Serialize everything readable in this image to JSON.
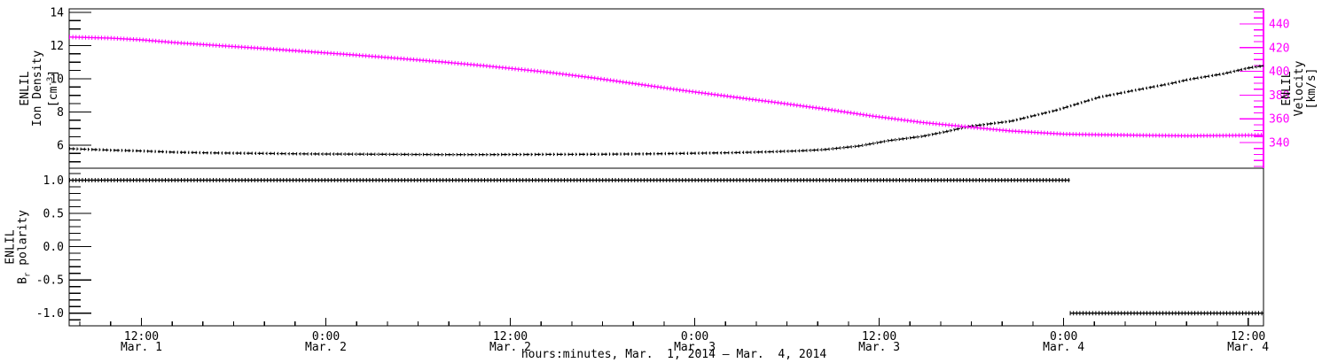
{
  "labels": {
    "density_axis": {
      "line1": "ENLIL",
      "line2": "Ion Density",
      "unit_pre": "[cm",
      "unit_sup": "-3",
      "unit_post": "]"
    },
    "velocity_axis": {
      "line1": "ENLIL",
      "line2": "Velocity",
      "line3": "[km/s]"
    },
    "polarity_axis": {
      "line1": "ENLIL",
      "pre": "B",
      "sub": "r",
      "post": " polarity"
    },
    "x_axis_title": "hours:minutes, Mar.  1, 2014 — Mar.  4, 2014"
  },
  "colors": {
    "background": "#FFFFFF",
    "frame": "#000000",
    "density_series": "#000000",
    "velocity_series": "#FF00FF",
    "polarity_series": "#000000",
    "velocity_axis": "#FF00FF"
  },
  "chart_data": [
    {
      "type": "line",
      "panel": "top",
      "x_axis": {
        "unit": "hours from Mar. 1, 2014 00:00",
        "xlim": [
          7.3,
          85.0
        ],
        "major_ticks": [
          12,
          24,
          36,
          48,
          60,
          72,
          84
        ],
        "major_tick_labels": [
          [
            "12:00",
            "Mar. 1"
          ],
          [
            "0:00",
            "Mar. 2"
          ],
          [
            "12:00",
            "Mar. 2"
          ],
          [
            "0:00",
            "Mar. 3"
          ],
          [
            "12:00",
            "Mar. 3"
          ],
          [
            "0:00",
            "Mar. 4"
          ],
          [
            "12:00",
            "Mar. 4"
          ]
        ],
        "minor_step": 2,
        "labels_shown": false
      },
      "left_axis": {
        "title": "ENLIL Ion Density [cm^-3]",
        "color": "#000000",
        "ylim": [
          4.61,
          14.21
        ],
        "major_ticks": [
          6,
          8,
          10,
          12,
          14
        ],
        "tick_labels": [
          "6",
          "8",
          "10",
          "12",
          "14"
        ],
        "minor_step": 0.5,
        "minor_range": [
          5.0,
          14.0
        ]
      },
      "right_axis": {
        "title": "ENLIL Velocity [km/s]",
        "color": "#FF00FF",
        "ylim": [
          318.4,
          452.7
        ],
        "major_ticks": [
          340,
          360,
          380,
          400,
          420,
          440
        ],
        "tick_labels": [
          "340",
          "360",
          "380",
          "400",
          "420",
          "440"
        ],
        "minor_step": 5,
        "minor_range": [
          320,
          450
        ]
      },
      "series": [
        {
          "name": "ion_density",
          "axis": "left",
          "color": "#000000",
          "style": "dashdot",
          "x": [
            7.3,
            10,
            12,
            14.3,
            17,
            20,
            23,
            25.8,
            28.7,
            31.6,
            34.5,
            38.5,
            41.4,
            44.3,
            47.2,
            50.7,
            53,
            54.9,
            56.4,
            58.7,
            60.6,
            62.8,
            64.3,
            65.8,
            68.6,
            71.5,
            74.3,
            76.6,
            78.9,
            80.1,
            82.4,
            84,
            85
          ],
          "y": [
            5.79,
            5.7,
            5.65,
            5.57,
            5.53,
            5.5,
            5.47,
            5.46,
            5.44,
            5.43,
            5.43,
            5.44,
            5.45,
            5.47,
            5.5,
            5.55,
            5.6,
            5.66,
            5.73,
            5.95,
            6.27,
            6.53,
            6.8,
            7.12,
            7.45,
            8.1,
            8.88,
            9.3,
            9.7,
            9.95,
            10.3,
            10.65,
            10.78
          ]
        },
        {
          "name": "velocity",
          "axis": "right",
          "color": "#FF00FF",
          "style": "plus",
          "x": [
            7.3,
            10,
            12,
            14.3,
            17,
            20.1,
            23,
            25.8,
            28.7,
            31.6,
            34.5,
            38.5,
            41.4,
            44.3,
            47.2,
            50.7,
            53.5,
            56.4,
            59.5,
            62.8,
            65.8,
            68.6,
            72,
            74.3,
            76.6,
            80.1,
            82.4,
            85
          ],
          "y": [
            429,
            428,
            426.6,
            424.1,
            421.8,
            419.1,
            416.5,
            413.9,
            411,
            407.9,
            404.5,
            399.2,
            394.5,
            389.3,
            384,
            378.1,
            373.5,
            368.4,
            362.5,
            357,
            353.2,
            349.7,
            347.2,
            346.6,
            346.2,
            345.7,
            345.9,
            346.3
          ]
        }
      ]
    },
    {
      "type": "line",
      "panel": "bottom",
      "x_axis": {
        "unit": "hours from Mar. 1, 2014 00:00",
        "xlim": [
          7.3,
          85.0
        ],
        "major_ticks": [
          12,
          24,
          36,
          48,
          60,
          72,
          84
        ],
        "major_tick_labels": [
          [
            "12:00",
            "Mar. 1"
          ],
          [
            "0:00",
            "Mar. 2"
          ],
          [
            "12:00",
            "Mar. 2"
          ],
          [
            "0:00",
            "Mar. 3"
          ],
          [
            "12:00",
            "Mar. 3"
          ],
          [
            "0:00",
            "Mar. 4"
          ],
          [
            "12:00",
            "Mar. 4"
          ]
        ],
        "minor_step": 2,
        "labels_shown": true
      },
      "left_axis": {
        "title": "ENLIL Br polarity",
        "color": "#000000",
        "ylim": [
          -1.19,
          1.18
        ],
        "major_ticks": [
          -1.0,
          -0.5,
          0.0,
          0.5,
          1.0
        ],
        "tick_labels": [
          "-1.0",
          "-0.5",
          "0.0",
          "0.5",
          "1.0"
        ],
        "minor_step": 0.1,
        "minor_range": [
          -1.1,
          1.1
        ]
      },
      "series": [
        {
          "name": "br_polarity_positive",
          "axis": "left",
          "color": "#000000",
          "style": "plus",
          "x": [
            7.3,
            72.4
          ],
          "y": [
            1,
            1
          ]
        },
        {
          "name": "br_polarity_negative",
          "axis": "left",
          "color": "#000000",
          "style": "plus",
          "x": [
            72.4,
            85.0
          ],
          "y": [
            -1,
            -1
          ]
        }
      ]
    }
  ]
}
